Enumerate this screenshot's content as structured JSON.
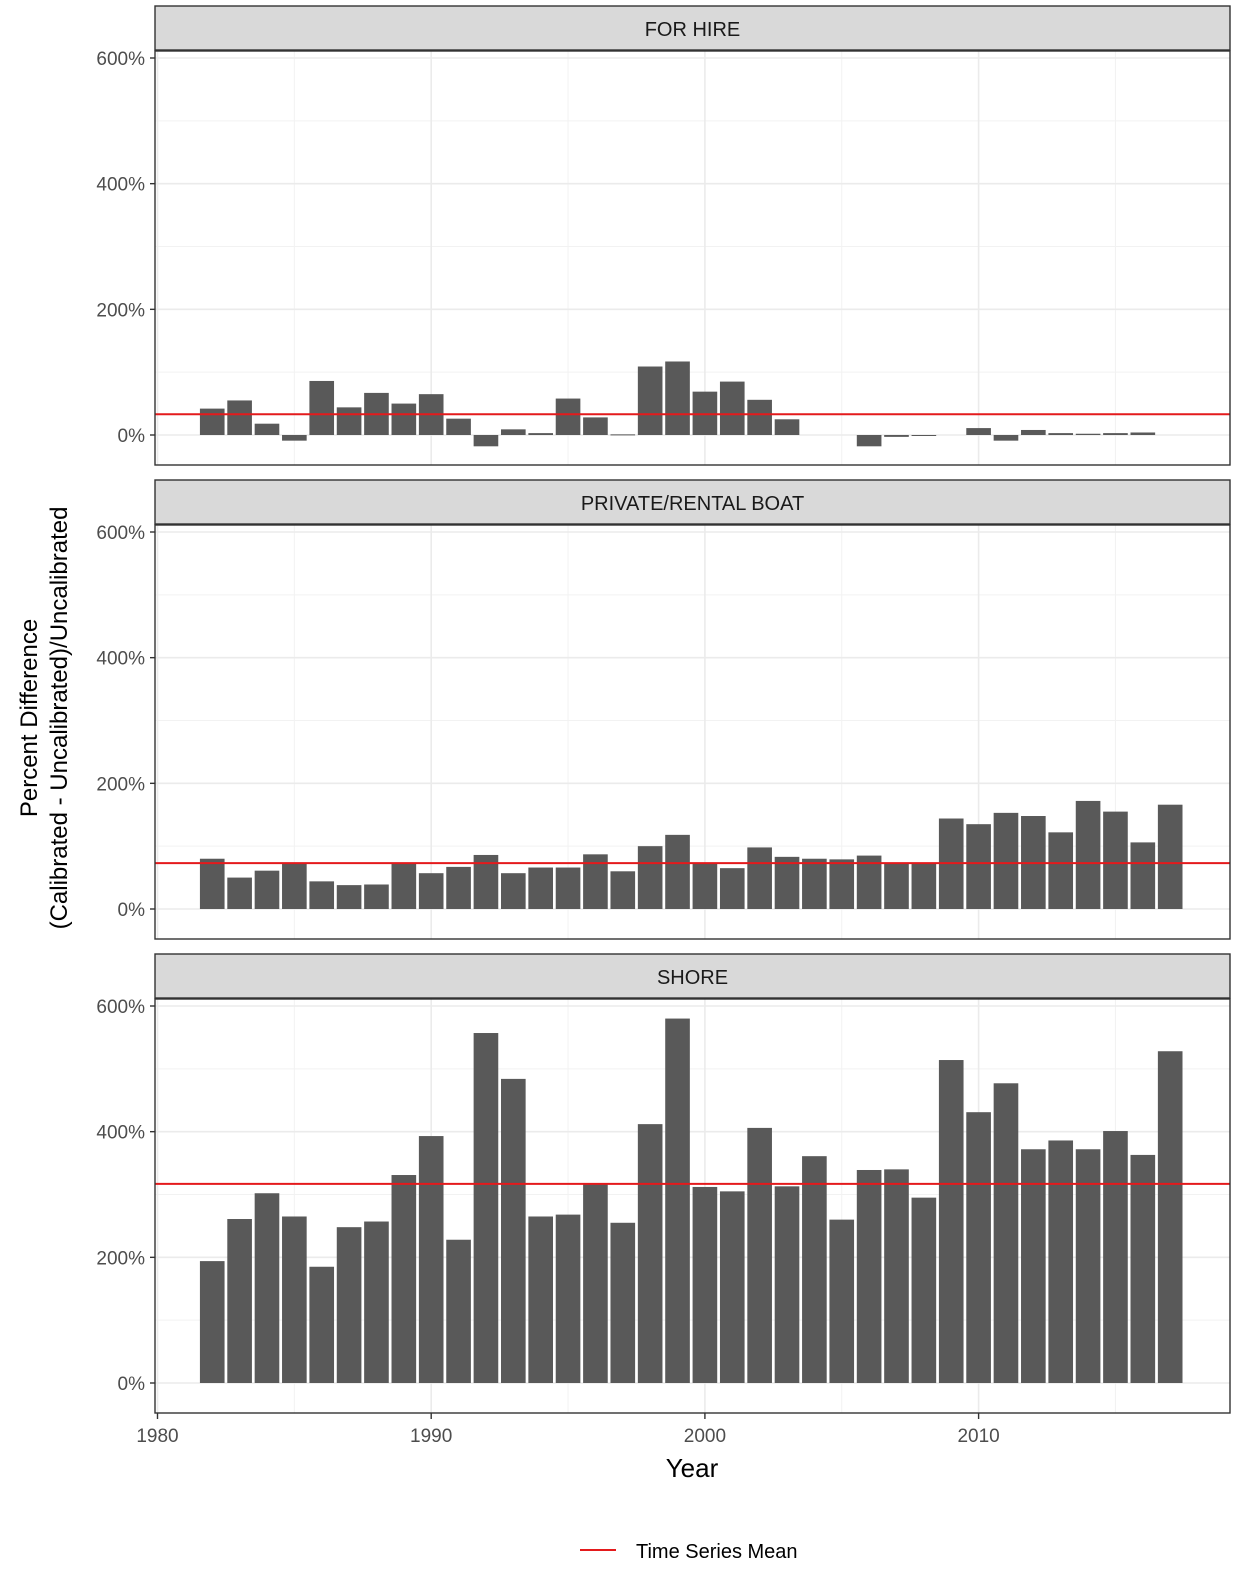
{
  "chart_data": {
    "type": "bar",
    "ylabel_line1": "Percent Difference",
    "ylabel_line2": "(Calibrated - Uncalibrated)/Uncalibrated",
    "xlabel": "Year",
    "x_ticks": [
      1980,
      1990,
      2000,
      2010
    ],
    "xlim": [
      1980,
      2019
    ],
    "y_ticks": [
      0,
      200,
      400,
      600
    ],
    "y_tick_labels": [
      "0%",
      "200%",
      "400%",
      "600%"
    ],
    "ylim": [
      -48,
      610
    ],
    "grid": true,
    "legend_position": "bottom",
    "legend_label": "Time Series Mean",
    "mean_line_color": "#e41a1c",
    "bar_color": "#595959",
    "panels": [
      {
        "name": "FOR HIRE",
        "mean": 33,
        "years": [
          1982,
          1983,
          1984,
          1985,
          1986,
          1987,
          1988,
          1989,
          1990,
          1991,
          1992,
          1993,
          1994,
          1995,
          1996,
          1997,
          1998,
          1999,
          2000,
          2001,
          2002,
          2003,
          2006,
          2007,
          2008,
          2010,
          2011,
          2012,
          2013,
          2014,
          2015,
          2016
        ],
        "values": [
          42,
          55,
          18,
          -9,
          86,
          44,
          67,
          50,
          65,
          26,
          -18,
          9,
          3,
          58,
          28,
          1,
          109,
          117,
          69,
          85,
          56,
          25,
          -18,
          -3,
          -1,
          11,
          -9,
          8,
          3,
          2,
          3,
          4
        ]
      },
      {
        "name": "PRIVATE/RENTAL BOAT",
        "mean": 73,
        "years": [
          1982,
          1983,
          1984,
          1985,
          1986,
          1987,
          1988,
          1989,
          1990,
          1991,
          1992,
          1993,
          1994,
          1995,
          1996,
          1997,
          1998,
          1999,
          2000,
          2001,
          2002,
          2003,
          2004,
          2005,
          2006,
          2007,
          2008,
          2009,
          2010,
          2011,
          2012,
          2013,
          2014,
          2015,
          2016,
          2017
        ],
        "values": [
          80,
          50,
          61,
          74,
          44,
          38,
          39,
          73,
          57,
          67,
          86,
          57,
          66,
          66,
          87,
          60,
          100,
          118,
          73,
          65,
          98,
          83,
          80,
          79,
          85,
          73,
          73,
          144,
          135,
          153,
          148,
          122,
          172,
          155,
          106,
          166
        ]
      },
      {
        "name": "SHORE",
        "mean": 317,
        "years": [
          1982,
          1983,
          1984,
          1985,
          1986,
          1987,
          1988,
          1989,
          1990,
          1991,
          1992,
          1993,
          1994,
          1995,
          1996,
          1997,
          1998,
          1999,
          2000,
          2001,
          2002,
          2003,
          2004,
          2005,
          2006,
          2007,
          2008,
          2009,
          2010,
          2011,
          2012,
          2013,
          2014,
          2015,
          2016,
          2017
        ],
        "values": [
          194,
          261,
          302,
          265,
          185,
          248,
          257,
          331,
          393,
          228,
          557,
          484,
          265,
          268,
          318,
          255,
          412,
          580,
          312,
          305,
          406,
          313,
          361,
          260,
          339,
          340,
          295,
          514,
          431,
          477,
          372,
          386,
          372,
          401,
          363,
          528
        ]
      }
    ]
  }
}
